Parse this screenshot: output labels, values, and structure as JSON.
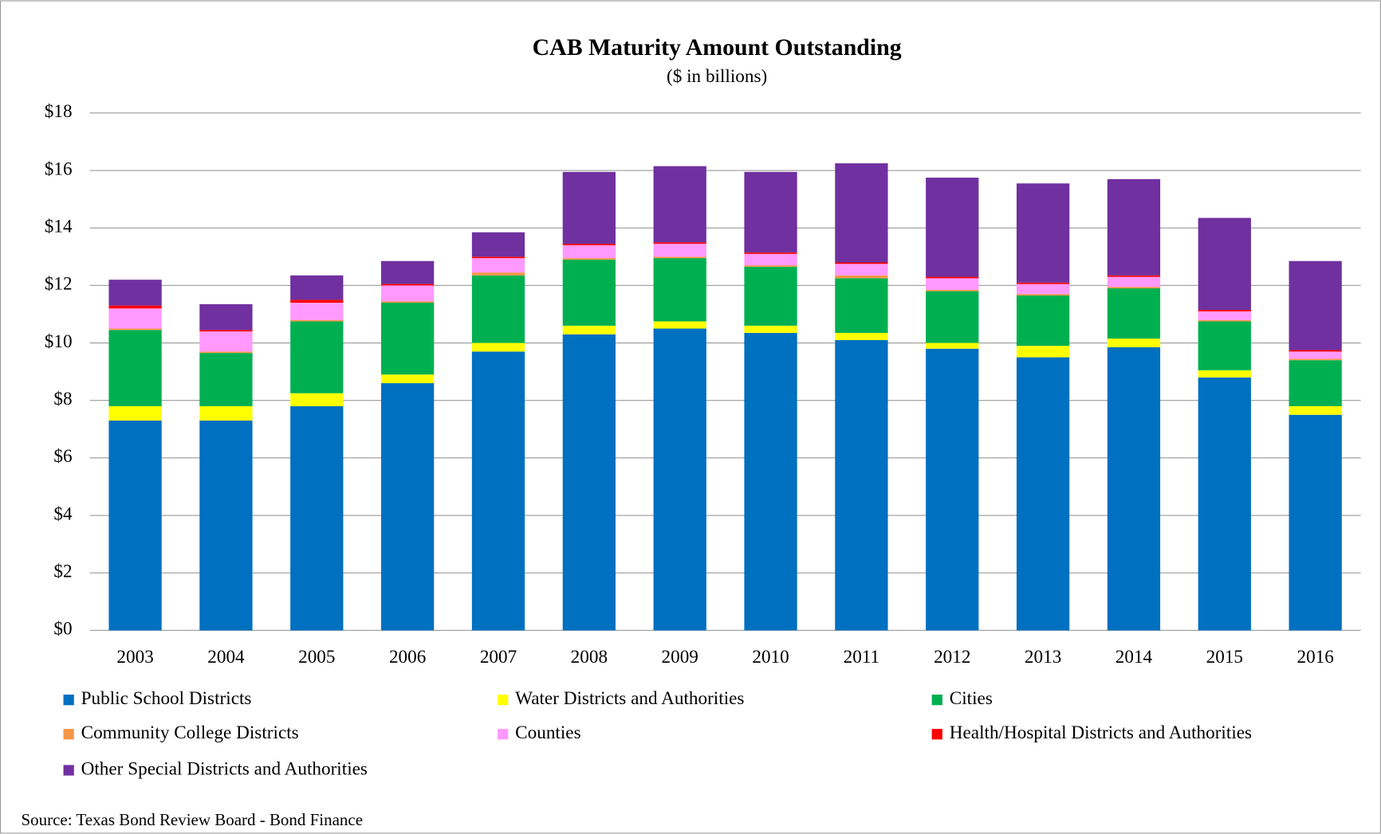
{
  "chart_data": {
    "type": "stacked_bar",
    "title": "CAB Maturity Amount Outstanding",
    "subtitle": "($ in billions)",
    "source": "Source: Texas Bond Review Board - Bond Finance",
    "categories": [
      "2003",
      "2004",
      "2005",
      "2006",
      "2007",
      "2008",
      "2009",
      "2010",
      "2011",
      "2012",
      "2013",
      "2014",
      "2015",
      "2016"
    ],
    "series": [
      {
        "name": "Public School Districts",
        "color": "#0070c0",
        "values": [
          7.3,
          7.3,
          7.8,
          8.6,
          9.7,
          10.3,
          10.5,
          10.35,
          10.1,
          9.8,
          9.5,
          9.85,
          8.8,
          7.5
        ]
      },
      {
        "name": "Water Districts and Authorities",
        "color": "#ffff00",
        "values": [
          0.5,
          0.5,
          0.45,
          0.3,
          0.3,
          0.3,
          0.25,
          0.25,
          0.25,
          0.2,
          0.4,
          0.3,
          0.25,
          0.3
        ]
      },
      {
        "name": "Cities",
        "color": "#00b050",
        "values": [
          2.65,
          1.85,
          2.5,
          2.5,
          2.35,
          2.3,
          2.2,
          2.05,
          1.9,
          1.8,
          1.75,
          1.75,
          1.7,
          1.6
        ]
      },
      {
        "name": "Community College Districts",
        "color": "#f79646",
        "values": [
          0.05,
          0.05,
          0.05,
          0.05,
          0.1,
          0.05,
          0.05,
          0.05,
          0.1,
          0.05,
          0.05,
          0.05,
          0.05,
          0.05
        ]
      },
      {
        "name": "Counties",
        "color": "#ff99ff",
        "values": [
          0.7,
          0.7,
          0.6,
          0.55,
          0.5,
          0.45,
          0.45,
          0.4,
          0.4,
          0.4,
          0.35,
          0.35,
          0.3,
          0.25
        ]
      },
      {
        "name": "Health/Hospital Districts and Authorities",
        "color": "#ff0000",
        "values": [
          0.1,
          0.05,
          0.1,
          0.05,
          0.05,
          0.05,
          0.05,
          0.05,
          0.05,
          0.05,
          0.05,
          0.05,
          0.05,
          0.05
        ]
      },
      {
        "name": "Other Special Districts and Authorities",
        "color": "#7030a0",
        "values": [
          0.9,
          0.9,
          0.85,
          0.8,
          0.85,
          2.5,
          2.65,
          2.8,
          3.45,
          3.45,
          3.45,
          3.35,
          3.2,
          3.1
        ]
      }
    ],
    "ylim": [
      0,
      18
    ],
    "yticks": [
      {
        "value": 0,
        "label": "$0"
      },
      {
        "value": 2,
        "label": "$2"
      },
      {
        "value": 4,
        "label": "$4"
      },
      {
        "value": 6,
        "label": "$6"
      },
      {
        "value": 8,
        "label": "$8"
      },
      {
        "value": 10,
        "label": "$10"
      },
      {
        "value": 12,
        "label": "$12"
      },
      {
        "value": 14,
        "label": "$14"
      },
      {
        "value": 16,
        "label": "$16"
      },
      {
        "value": 18,
        "label": "$18"
      }
    ],
    "grid": true
  }
}
